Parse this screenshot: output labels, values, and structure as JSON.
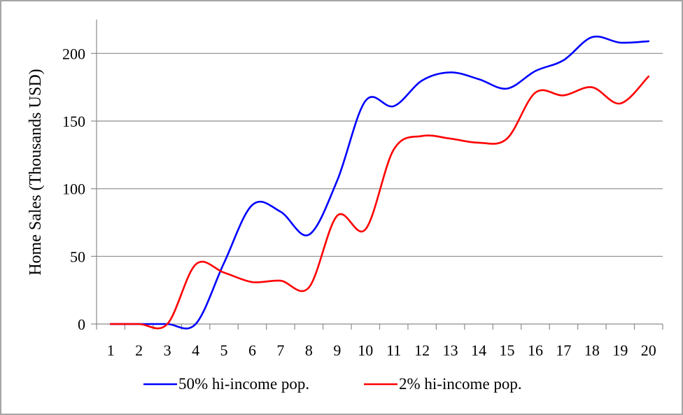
{
  "chart_data": {
    "type": "line",
    "title": "",
    "xlabel": "",
    "ylabel": "Home Sales (Thousands USD)",
    "categories": [
      "1",
      "2",
      "3",
      "4",
      "5",
      "6",
      "7",
      "8",
      "9",
      "10",
      "11",
      "12",
      "13",
      "14",
      "15",
      "16",
      "17",
      "18",
      "19",
      "20"
    ],
    "ylim": [
      0,
      225
    ],
    "yticks": [
      0,
      50,
      100,
      150,
      200
    ],
    "grid": true,
    "legend": "bottom",
    "series": [
      {
        "name": "50% hi-income pop.",
        "color": "#0000ff",
        "values": [
          0,
          0,
          0,
          0,
          45,
          88,
          83,
          66,
          106,
          165,
          161,
          180,
          186,
          181,
          174,
          187,
          195,
          212,
          208,
          209
        ]
      },
      {
        "name": "2% hi-income pop.",
        "color": "#ff0000",
        "values": [
          0,
          0,
          0,
          44,
          38,
          31,
          32,
          27,
          80,
          70,
          129,
          139,
          137,
          134,
          137,
          171,
          169,
          175,
          163,
          183
        ]
      }
    ]
  }
}
